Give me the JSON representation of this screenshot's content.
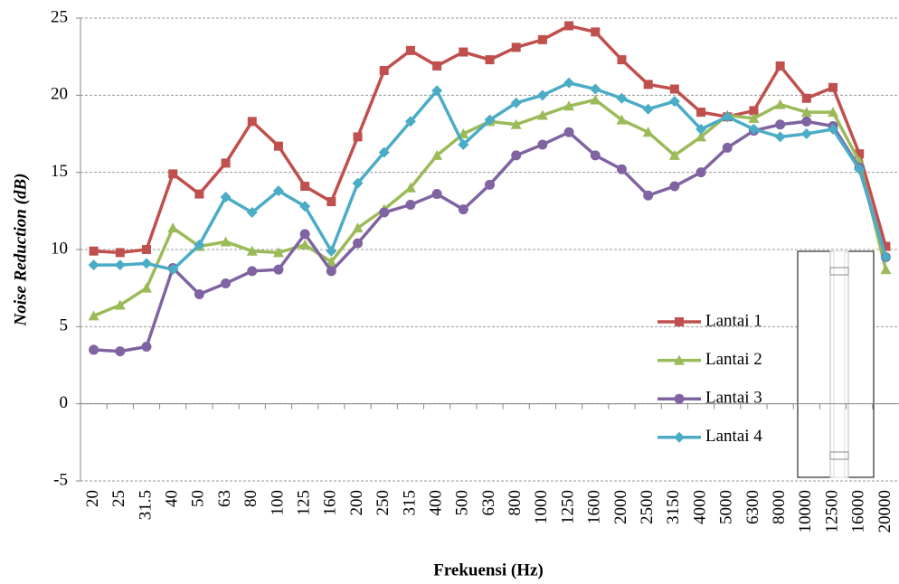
{
  "chart_data": {
    "type": "line",
    "x_label": "Frekuensi (Hz)",
    "y_label": "Noise Reduction (dB)",
    "categories": [
      "20",
      "25",
      "31.5",
      "40",
      "50",
      "63",
      "80",
      "100",
      "125",
      "160",
      "200",
      "250",
      "315",
      "400",
      "500",
      "630",
      "800",
      "1000",
      "1250",
      "1600",
      "2000",
      "2500",
      "3150",
      "4000",
      "5000",
      "6300",
      "8000",
      "10000",
      "12500",
      "16000",
      "20000"
    ],
    "series": [
      {
        "name": "Lantai 1",
        "color": "#c0504d",
        "marker": "square",
        "values": [
          9.9,
          9.8,
          10,
          14.9,
          13.6,
          15.6,
          18.3,
          16.7,
          14.1,
          13.1,
          17.3,
          21.6,
          22.9,
          21.9,
          22.8,
          22.3,
          23.1,
          23.6,
          24.5,
          24.1,
          22.3,
          20.7,
          20.4,
          18.9,
          18.6,
          19,
          21.9,
          19.8,
          20.5,
          16.2,
          10.2
        ]
      },
      {
        "name": "Lantai 2",
        "color": "#9bbb59",
        "marker": "triangle",
        "values": [
          5.7,
          6.4,
          7.5,
          11.4,
          10.2,
          10.5,
          9.9,
          9.8,
          10.3,
          9.2,
          11.4,
          12.6,
          14,
          16.1,
          17.5,
          18.3,
          18.1,
          18.7,
          19.3,
          19.7,
          18.4,
          17.6,
          16.1,
          17.3,
          18.7,
          18.5,
          19.4,
          18.9,
          18.9,
          15.7,
          8.7
        ]
      },
      {
        "name": "Lantai 3",
        "color": "#8064a2",
        "marker": "circle",
        "values": [
          3.5,
          3.4,
          3.7,
          8.8,
          7.1,
          7.8,
          8.6,
          8.7,
          11,
          8.6,
          10.4,
          12.4,
          12.9,
          13.6,
          12.6,
          14.2,
          16.1,
          16.8,
          17.6,
          16.1,
          15.2,
          13.5,
          14.1,
          15,
          16.6,
          17.7,
          18.1,
          18.3,
          18,
          15.3,
          9.5
        ]
      },
      {
        "name": "Lantai 4",
        "color": "#4bacc6",
        "marker": "diamond",
        "values": [
          9,
          9,
          9.1,
          8.7,
          10.3,
          13.4,
          12.4,
          13.8,
          12.8,
          9.9,
          14.3,
          16.3,
          18.3,
          20.3,
          16.8,
          18.4,
          19.5,
          20,
          20.8,
          20.4,
          19.8,
          19.1,
          19.6,
          17.8,
          18.6,
          17.8,
          17.3,
          17.5,
          17.8,
          15.2,
          9.5
        ]
      }
    ],
    "ylim": [
      -5,
      25
    ],
    "yticks": [
      -5,
      0,
      5,
      10,
      15,
      20,
      25
    ],
    "grid": true,
    "legend": "right"
  }
}
